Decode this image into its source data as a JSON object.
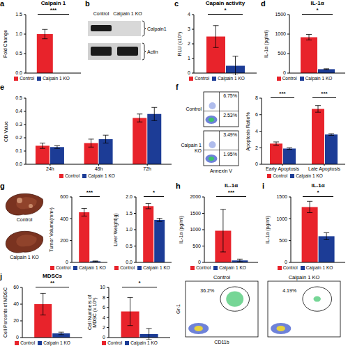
{
  "chart_data": [
    {
      "panel": "a",
      "type": "bar",
      "title": "Calpain 1",
      "y_label": "Fold Change",
      "categories": [
        null
      ],
      "series": [
        {
          "name": "Control",
          "color": "#e8232b",
          "values": [
            1.0
          ],
          "errors": [
            0.12
          ]
        },
        {
          "name": "Calpain 1 KO",
          "color": "#1c3c96",
          "values": [
            0
          ],
          "errors": [
            0
          ]
        }
      ],
      "ylim": [
        0,
        1.5
      ],
      "yticks": [
        {
          "value": 0,
          "label": "0.0"
        },
        0.5,
        {
          "value": 1,
          "label": "1.0"
        },
        1.5
      ],
      "annotations": [
        "***"
      ],
      "legend": "bottom"
    },
    {
      "panel": "c",
      "type": "bar",
      "title": "Capain activity",
      "y_label": "RLU (x10⁵)",
      "categories": [
        null
      ],
      "series": [
        {
          "name": "Control",
          "color": "#e8232b",
          "values": [
            2.5
          ],
          "errors": [
            0.75
          ]
        },
        {
          "name": "Calpain 1 KO",
          "color": "#1c3c96",
          "values": [
            0.5
          ],
          "errors": [
            0.65
          ]
        }
      ],
      "ylim": [
        0,
        4
      ],
      "yticks": [
        0,
        1,
        2,
        3,
        4
      ],
      "annotations": [
        "*"
      ],
      "legend": "bottom"
    },
    {
      "panel": "d",
      "type": "bar",
      "title": "IL-1α",
      "y_label": "IL-1α (pg/ml)",
      "categories": [
        null
      ],
      "series": [
        {
          "name": "Control",
          "color": "#e8232b",
          "values": [
            920
          ],
          "errors": [
            70
          ]
        },
        {
          "name": "Calpain 1 KO",
          "color": "#1c3c96",
          "values": [
            100
          ],
          "errors": [
            10
          ]
        }
      ],
      "ylim": [
        0,
        1500
      ],
      "yticks": [
        0,
        500,
        1000,
        1500
      ],
      "annotations": [
        "*"
      ],
      "legend": "bottom"
    },
    {
      "panel": "e",
      "type": "bar",
      "y_label": "OD Value",
      "categories": [
        "24h",
        "48h",
        "72h"
      ],
      "series": [
        {
          "name": "Control",
          "color": "#e8232b",
          "values": [
            0.14,
            0.16,
            0.35
          ],
          "errors": [
            0.02,
            0.03,
            0.03
          ]
        },
        {
          "name": "Calpain 1 KO",
          "color": "#1c3c96",
          "values": [
            0.13,
            0.19,
            0.38
          ],
          "errors": [
            0.01,
            0.03,
            0.05
          ]
        }
      ],
      "ylim": [
        0,
        0.5
      ],
      "yticks": [
        {
          "value": 0,
          "label": "0.0"
        },
        0.1,
        0.2,
        0.3,
        0.4,
        0.5
      ],
      "legend": "bottom"
    },
    {
      "type": "bar",
      "y_label": "Apoptosis Ratio%",
      "categories": [
        "Early Apoptosis",
        "Late Apoptosis"
      ],
      "series": [
        {
          "name": "Control",
          "color": "#e8232b",
          "values": [
            2.5,
            6.7
          ],
          "errors": [
            0.2,
            0.4
          ]
        },
        {
          "name": "Calpain 1 KO",
          "color": "#1c3c96",
          "values": [
            1.9,
            3.6
          ],
          "errors": [
            0.1,
            0.1
          ]
        }
      ],
      "ylim": [
        0,
        8
      ],
      "yticks": [
        0,
        2,
        4,
        6,
        8
      ],
      "annotations": [
        "***",
        "***"
      ],
      "legend": "bottom"
    },
    {
      "type": "bar",
      "y_label": "Tumor Volume(mm³)",
      "categories": [
        null
      ],
      "series": [
        {
          "name": "Control",
          "color": "#e8232b",
          "values": [
            460
          ],
          "errors": [
            35
          ]
        },
        {
          "name": "Calpain 1 KO",
          "color": "#1c3c96",
          "values": [
            10
          ],
          "errors": [
            3
          ]
        }
      ],
      "ylim": [
        0,
        600
      ],
      "yticks": [
        0,
        200,
        400,
        600
      ],
      "annotations": [
        "***"
      ],
      "legend": "bottom"
    },
    {
      "type": "bar",
      "y_label": "Liver Weight(g)",
      "categories": [
        null
      ],
      "series": [
        {
          "name": "Control",
          "color": "#e8232b",
          "values": [
            1.72
          ],
          "errors": [
            0.08
          ]
        },
        {
          "name": "Calpain 1 KO",
          "color": "#1c3c96",
          "values": [
            1.3
          ],
          "errors": [
            0.05
          ]
        }
      ],
      "ylim": [
        0,
        2
      ],
      "yticks": [
        {
          "value": 0,
          "label": "0.0"
        },
        0.5,
        {
          "value": 1,
          "label": "1.0"
        },
        1.5,
        {
          "value": 2,
          "label": "2.0"
        }
      ],
      "annotations": [
        "*"
      ],
      "legend": "bottom"
    },
    {
      "panel": "h",
      "type": "bar",
      "title": "IL-1α",
      "y_label": "IL-1α (pg/ml)",
      "categories": [
        null
      ],
      "series": [
        {
          "name": "Control",
          "color": "#e8232b",
          "values": [
            970
          ],
          "errors": [
            650
          ]
        },
        {
          "name": "Calpain 1 KO",
          "color": "#1c3c96",
          "values": [
            60
          ],
          "errors": [
            40
          ]
        }
      ],
      "ylim": [
        0,
        2000
      ],
      "yticks": [
        0,
        500,
        1000,
        1500,
        2000
      ],
      "annotations": [
        "***"
      ],
      "legend": "bottom"
    },
    {
      "panel": "i",
      "type": "bar",
      "title": "IL-1α",
      "y_label": "IL-1α (pg/ml)",
      "categories": [
        null
      ],
      "series": [
        {
          "name": "Control",
          "color": "#e8232b",
          "values": [
            1270
          ],
          "errors": [
            130
          ]
        },
        {
          "name": "Calpain 1 KO",
          "color": "#1c3c96",
          "values": [
            600
          ],
          "errors": [
            80
          ]
        }
      ],
      "ylim": [
        0,
        1500
      ],
      "yticks": [
        0,
        500,
        1000,
        1500
      ],
      "annotations": [
        "*"
      ],
      "legend": "bottom"
    },
    {
      "panel": "j",
      "type": "bar",
      "title": "MDSCs",
      "y_label": "Cell Percents of MDSC",
      "categories": [
        null
      ],
      "series": [
        {
          "name": "Control",
          "color": "#e8232b",
          "values": [
            40
          ],
          "errors": [
            13
          ]
        },
        {
          "name": "Calpain 1 KO",
          "color": "#1c3c96",
          "values": [
            5
          ],
          "errors": [
            1.5
          ]
        }
      ],
      "ylim": [
        0,
        60
      ],
      "yticks": [
        0,
        20,
        40,
        60
      ],
      "annotations": [
        "**"
      ],
      "legend": "bottom"
    },
    {
      "type": "bar",
      "y_label": "Cell Numbers of MDSC (x 10⁵)",
      "categories": [
        null
      ],
      "series": [
        {
          "name": "Control",
          "color": "#e8232b",
          "values": [
            5.2
          ],
          "errors": [
            2.8
          ]
        },
        {
          "name": "Calpain 1 KO",
          "color": "#1c3c96",
          "values": [
            0.7
          ],
          "errors": [
            1.1
          ]
        }
      ],
      "ylim": [
        0,
        10
      ],
      "yticks": [
        0,
        2,
        4,
        6,
        8,
        10
      ],
      "annotations": [
        "*"
      ],
      "legend": "bottom"
    }
  ],
  "blot": {
    "panel": "b",
    "lanes": [
      "Control",
      "Calpain 1 KO"
    ],
    "bands": [
      "Calpain1",
      "Actin"
    ]
  },
  "flow_apoptosis": {
    "panel": "f",
    "x_label": "Annexin V",
    "plots": [
      {
        "label": "Control",
        "gates": [
          {
            "position": "upper right",
            "label": "6.75%"
          },
          {
            "position": "lower right",
            "label": "2.53%"
          }
        ]
      },
      {
        "label": "Calpain 1 KO",
        "gates": [
          {
            "position": "upper right",
            "label": "3.49%"
          },
          {
            "position": "lower right",
            "label": "1.95%"
          }
        ]
      }
    ]
  },
  "liver_images": {
    "panel": "g",
    "labels": [
      "Control",
      "Calpain 1 KO"
    ]
  },
  "flow_mdsc": {
    "x_label": "CD11b",
    "y_label": "Gr-1",
    "plots": [
      {
        "title": "Control",
        "gates": [
          {
            "position": "upper right",
            "label": "36.2%"
          }
        ]
      },
      {
        "title": "Calpain 1 KO",
        "gates": [
          {
            "position": "upper right",
            "label": "4.19%"
          }
        ]
      }
    ]
  }
}
